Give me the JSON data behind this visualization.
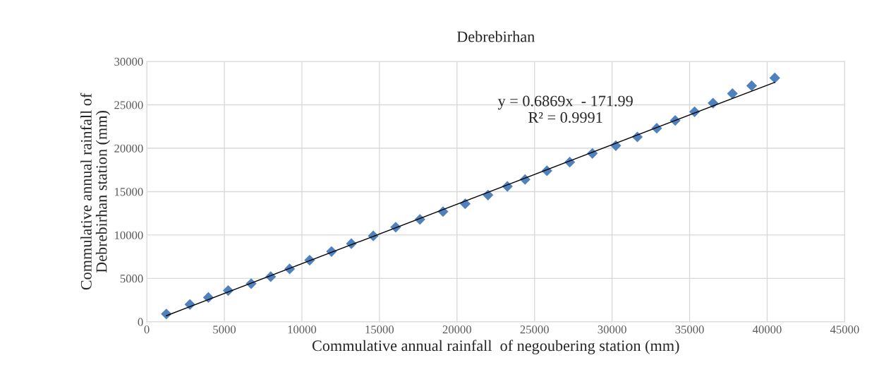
{
  "chart_data": {
    "type": "scatter",
    "title": "Debrebirhan",
    "xlabel": "Commulative annual rainfall  of negoubering station (mm)",
    "ylabel": "Commulative annual rainfall of\nDebrebirhan station (mm)",
    "x": [
      1260,
      2780,
      3970,
      5250,
      6730,
      7990,
      9210,
      10500,
      11910,
      13190,
      14600,
      16050,
      17610,
      19100,
      20530,
      22000,
      23250,
      24390,
      25800,
      27270,
      28730,
      30240,
      31630,
      32880,
      34070,
      35320,
      36510,
      37760,
      39000,
      40490
    ],
    "series": [
      {
        "color": "#4f81bd",
        "marker": "diamond",
        "values": [
          900,
          2000,
          2800,
          3600,
          4400,
          5200,
          6100,
          7100,
          8100,
          9000,
          9900,
          10900,
          11800,
          12700,
          13600,
          14600,
          15600,
          16400,
          17400,
          18400,
          19400,
          20300,
          21300,
          22300,
          23200,
          24200,
          25200,
          26300,
          27200,
          28100
        ]
      },
      {
        "type": "line",
        "color": "#000000",
        "x": [
          1260,
          40490
        ],
        "values": [
          700,
          27600
        ]
      }
    ],
    "annotations": [
      "y = 0.6869x  - 171.99\nR² = 0.9991"
    ],
    "xlim": [
      0,
      45000
    ],
    "xticks": [
      0,
      5000,
      10000,
      15000,
      20000,
      25000,
      30000,
      35000,
      40000,
      45000
    ],
    "ylim": [
      0,
      30000
    ],
    "yticks": [
      0,
      5000,
      10000,
      15000,
      20000,
      25000,
      30000
    ],
    "grid": true,
    "legend": false
  }
}
